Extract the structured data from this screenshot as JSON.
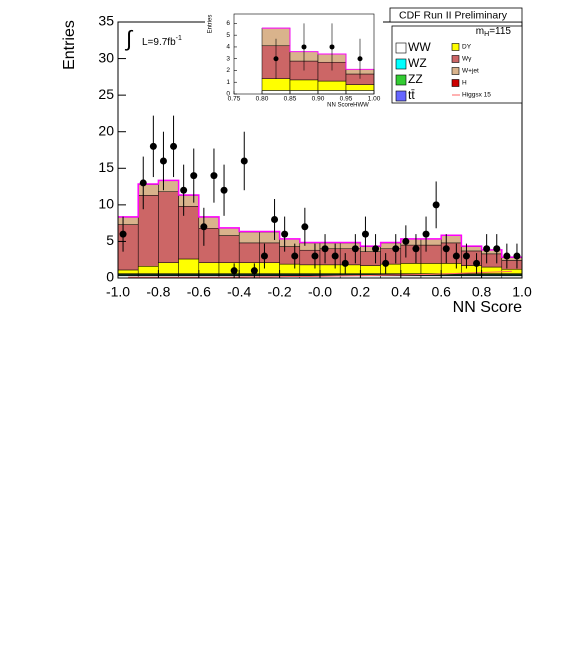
{
  "header": {
    "title": "CDF Run II Preliminary",
    "mass": {
      "m": "m",
      "sub": "H",
      "rest": "=115"
    },
    "lumi": {
      "integral": "∫",
      "text": "L=9.7fb",
      "sup": "-1"
    }
  },
  "chart_data": [
    {
      "type": "stacked-histogram",
      "xlabel": "NN Score",
      "ylabel": "Entries",
      "bins": [
        -1.0,
        -0.9,
        -0.8,
        -0.7,
        -0.6,
        -0.5,
        -0.4,
        -0.3,
        -0.2,
        -0.1,
        0.0,
        0.1,
        0.2,
        0.3,
        0.4,
        0.5,
        0.6,
        0.7,
        0.8,
        0.9,
        1.0
      ],
      "xlim": [
        -1,
        1
      ],
      "ylim": [
        0,
        35
      ],
      "xticks": [
        {
          "value": -1,
          "label": "-1.0"
        },
        -0.8,
        -0.6,
        -0.4,
        -0.2,
        {
          "value": 0,
          "label": "-0.0"
        },
        0.2,
        0.4,
        0.6,
        0.8,
        {
          "value": 1,
          "label": "1.0"
        }
      ],
      "yticks": [
        0,
        5,
        10,
        15,
        20,
        25,
        30,
        35
      ],
      "series": [
        {
          "name": "WW",
          "color": "#ffffff",
          "values": [
            0.3,
            0.3,
            0.3,
            0.3,
            0.3,
            0.3,
            0.3,
            0.3,
            0.3,
            0.3,
            0.3,
            0.3,
            0.3,
            0.3,
            0.3,
            0.3,
            0.3,
            0.3,
            0.3,
            0.3
          ]
        },
        {
          "name": "WZ",
          "color": "#00ffff",
          "values": [
            0.1,
            0.1,
            0.1,
            0.1,
            0.1,
            0.1,
            0.1,
            0.1,
            0.1,
            0.1,
            0.1,
            0.1,
            0.1,
            0.1,
            0.1,
            0.1,
            0.1,
            0.1,
            0.1,
            0.1
          ]
        },
        {
          "name": "ZZ",
          "color": "#33cc33",
          "values": [
            0.1,
            0.1,
            0.1,
            0.1,
            0.1,
            0.1,
            0.1,
            0.1,
            0.1,
            0.1,
            0.1,
            0.1,
            0.1,
            0.1,
            0.1,
            0.1,
            0.1,
            0.1,
            0.1,
            0.1
          ]
        },
        {
          "name": "tt̄",
          "color": "#6666ff",
          "values": [
            0.1,
            0.1,
            0.1,
            0.1,
            0.1,
            0.1,
            0.1,
            0.1,
            0.1,
            0.1,
            0.1,
            0.1,
            0.1,
            0.1,
            0.1,
            0.1,
            0.1,
            0.1,
            0.1,
            0.1
          ]
        },
        {
          "name": "DY",
          "color": "#ffff00",
          "values": [
            0.5,
            1,
            1.5,
            2,
            1.5,
            1.5,
            1.5,
            1.5,
            1.3,
            1.2,
            1.2,
            1.2,
            1.1,
            1.3,
            1.4,
            1.4,
            1.4,
            1.1,
            0.9,
            0.6
          ]
        },
        {
          "name": "Wγ",
          "color": "#cc6666",
          "values": [
            6.2,
            9.7,
            9.7,
            7.2,
            4.7,
            3.7,
            2.7,
            2.7,
            2.4,
            2.0,
            2.2,
            2.2,
            1.9,
            2.1,
            2.5,
            2.5,
            2.8,
            2.0,
            1.8,
            1.2
          ]
        },
        {
          "name": "W+jet",
          "color": "#d9b38c",
          "values": [
            1,
            1.5,
            1.5,
            1.5,
            1.5,
            1,
            1.5,
            1.5,
            1,
            1,
            0.8,
            0.8,
            0.7,
            0.8,
            0.8,
            0.8,
            1,
            0.6,
            0.5,
            0.4
          ]
        },
        {
          "name": "H",
          "color": "#cc0000",
          "values": [
            0.05,
            0.05,
            0.05,
            0.05,
            0.05,
            0.05,
            0.05,
            0.05,
            0.05,
            0.05,
            0.05,
            0.05,
            0.05,
            0.05,
            0.05,
            0.05,
            0.05,
            0.05,
            0.05,
            0.05
          ]
        },
        {
          "name": "Higgsx 15",
          "color": "#ff6666",
          "style": "line",
          "values": [
            0.1,
            0.1,
            0.1,
            0.1,
            0.1,
            0.1,
            0.15,
            0.15,
            0.2,
            0.2,
            0.25,
            0.3,
            0.35,
            0.4,
            0.45,
            0.5,
            0.6,
            0.7,
            0.8,
            0.9
          ]
        }
      ],
      "data_points": {
        "x": [
          -0.975,
          -0.875,
          -0.825,
          -0.775,
          -0.725,
          -0.675,
          -0.625,
          -0.575,
          -0.525,
          -0.475,
          -0.425,
          -0.375,
          -0.325,
          -0.275,
          -0.225,
          -0.175,
          -0.125,
          -0.075,
          -0.025,
          0.025,
          0.075,
          0.125,
          0.175,
          0.225,
          0.275,
          0.325,
          0.375,
          0.425,
          0.475,
          0.525,
          0.575,
          0.625,
          0.675,
          0.725,
          0.775,
          0.825,
          0.875,
          0.925,
          0.975
        ],
        "values": [
          6,
          13,
          18,
          16,
          18,
          12,
          14,
          7,
          14,
          12,
          1,
          16,
          1,
          3,
          8,
          6,
          3,
          7,
          3,
          4,
          3,
          2,
          4,
          6,
          4,
          2,
          4,
          5,
          4,
          6,
          10,
          4,
          3,
          3,
          2,
          4,
          4,
          3,
          3
        ],
        "errors": [
          2.4,
          3.6,
          4.2,
          4,
          4.2,
          3.5,
          3.7,
          2.6,
          3.7,
          3.5,
          1,
          4,
          1,
          1.7,
          2.8,
          2.4,
          1.7,
          2.6,
          1.7,
          2,
          1.7,
          1.4,
          2,
          2.4,
          2,
          1.4,
          2,
          2.2,
          2,
          2.4,
          3.2,
          2,
          1.7,
          1.7,
          1.4,
          2,
          2,
          1.7,
          1.7
        ]
      }
    },
    {
      "type": "stacked-histogram",
      "xlabel": "NN ScoreHWW",
      "ylabel": "Entries",
      "bins": [
        0.8,
        0.85,
        0.9,
        0.95,
        1.0
      ],
      "xlim": [
        0.75,
        1
      ],
      "ylim": [
        0,
        6.8
      ],
      "xticks": [
        0.75,
        {
          "value": 0.8,
          "label": "0.80"
        },
        0.85,
        {
          "value": 0.9,
          "label": "0.90"
        },
        0.95,
        {
          "value": 1,
          "label": "1.00"
        }
      ],
      "yticks": [
        0,
        1,
        2,
        3,
        4,
        5,
        6
      ],
      "series": [
        {
          "name": "WW",
          "color": "#ffffff",
          "values": [
            0.3,
            0.3,
            0.3,
            0.3
          ]
        },
        {
          "name": "DY",
          "color": "#ffff00",
          "values": [
            1,
            0.9,
            0.8,
            0.5
          ]
        },
        {
          "name": "Wγ",
          "color": "#cc6666",
          "values": [
            2.8,
            1.6,
            1.6,
            0.9
          ]
        },
        {
          "name": "W+jet",
          "color": "#d9b38c",
          "values": [
            1.5,
            0.8,
            0.7,
            0.4
          ]
        }
      ],
      "data_points": {
        "x": [
          0.825,
          0.875,
          0.925,
          0.975
        ],
        "values": [
          3,
          4,
          4,
          3
        ],
        "errors": [
          1.7,
          2,
          2,
          1.7
        ]
      }
    }
  ]
}
